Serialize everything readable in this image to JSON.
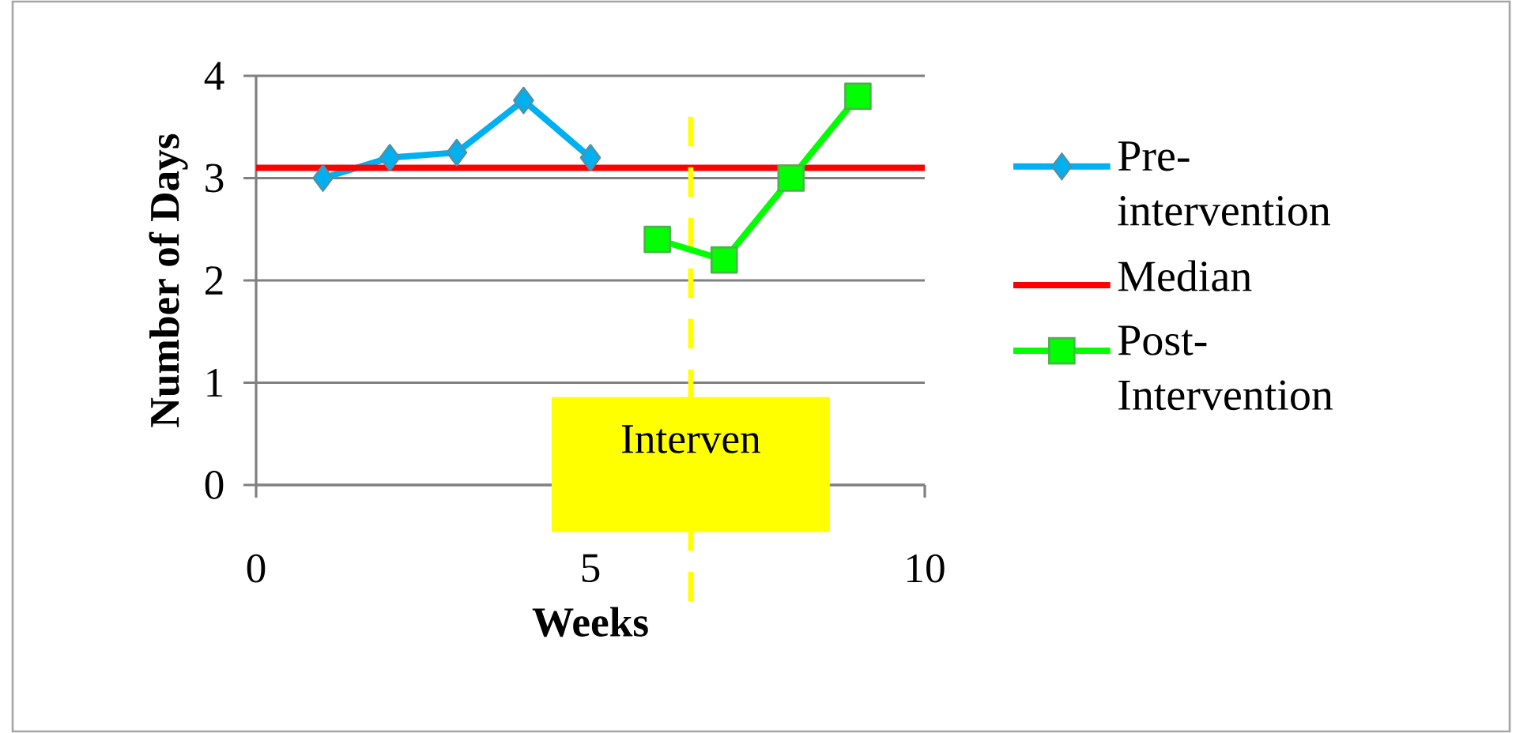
{
  "chart_data": {
    "type": "line",
    "xlabel": "Weeks",
    "ylabel": "Number  of Days",
    "xlim": [
      0,
      10
    ],
    "xticks": [
      0,
      5,
      10
    ],
    "ylim": [
      0,
      4
    ],
    "yticks": [
      0,
      1,
      2,
      3,
      4
    ],
    "grid": "y",
    "legend": "right",
    "series": [
      {
        "name": "Pre-intervention",
        "color": "#00b0f0",
        "marker": "diamond",
        "x": [
          1,
          2,
          3,
          4,
          5
        ],
        "values": [
          3.0,
          3.2,
          3.25,
          3.76,
          3.2
        ]
      },
      {
        "name": "Post-Intervention",
        "color": "#00ff00",
        "marker": "square",
        "x": [
          6,
          7,
          8,
          9
        ],
        "values": [
          2.4,
          2.2,
          3.0,
          3.8
        ]
      }
    ],
    "ref_lines": [
      {
        "axis": "y",
        "value": 3.1,
        "label": "Median",
        "color": "#ff0000",
        "line_style": "solid"
      },
      {
        "axis": "x",
        "value": 6.5,
        "label": "Interven",
        "color": "#ffff00",
        "line_style": "dashed"
      }
    ]
  }
}
